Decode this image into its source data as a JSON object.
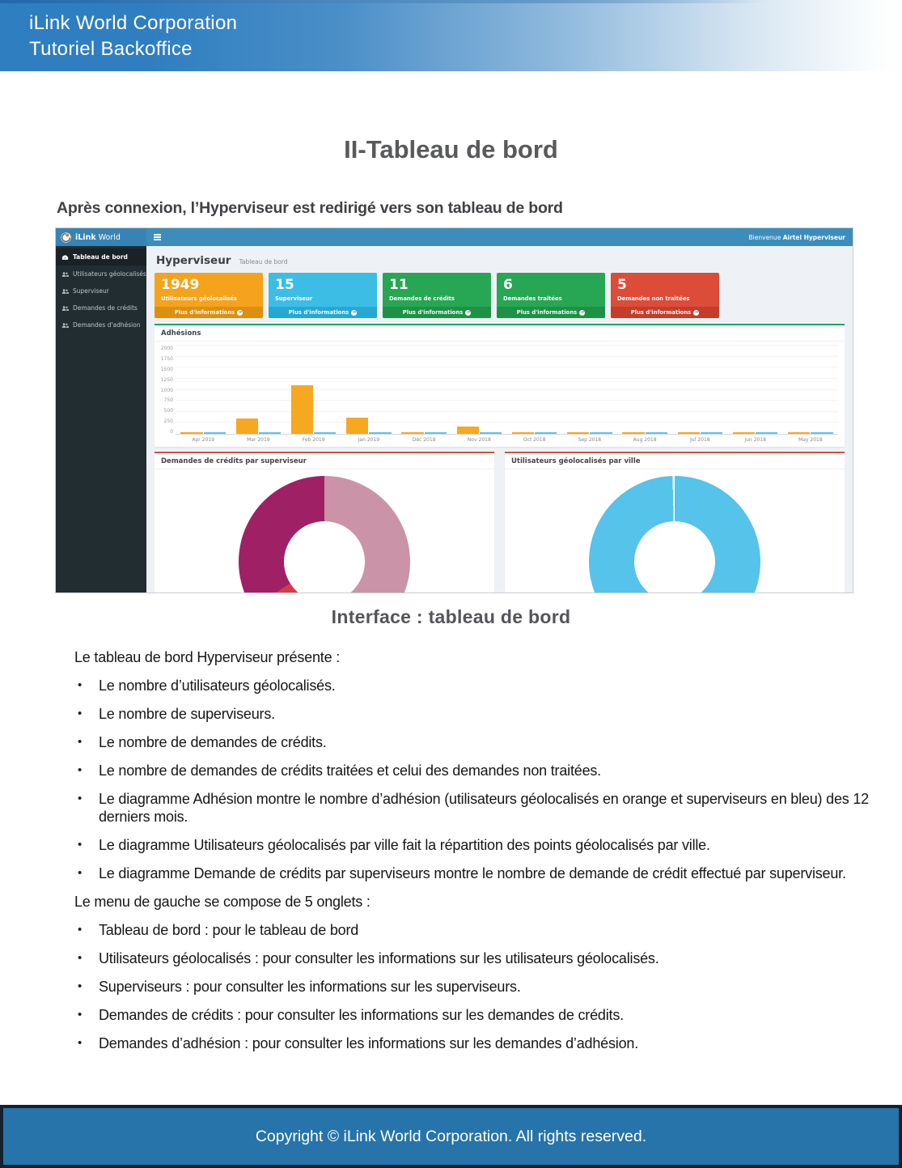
{
  "doc": {
    "header": {
      "line1": "iLink World Corporation",
      "line2": "Tutoriel Backoffice"
    },
    "title": "II-Tableau de bord",
    "subtitle": "Après connexion, l’Hyperviseur est redirigé vers son tableau de bord",
    "caption": "Interface : tableau de bord",
    "body": {
      "intro1": "Le tableau de bord Hyperviseur présente :",
      "bullets1": [
        "Le nombre d’utilisateurs géolocalisés.",
        "Le nombre de superviseurs.",
        "Le nombre de demandes de crédits.",
        "Le nombre de demandes de crédits traitées et celui des demandes non traitées.",
        "Le diagramme Adhésion montre le nombre d’adhésion (utilisateurs géolocalisés en orange et superviseurs en bleu) des 12 derniers mois.",
        "Le diagramme Utilisateurs géolocalisés par ville fait la répartition des points géolocalisés par ville.",
        "Le diagramme Demande de crédits par superviseurs montre le nombre de demande de crédit effectué par superviseur."
      ],
      "intro2": "Le menu de gauche se compose de 5 onglets :",
      "bullets2": [
        "Tableau de bord : pour le tableau de bord",
        "Utilisateurs géolocalisés : pour consulter les informations sur les utilisateurs géolocalisés.",
        "Superviseurs : pour consulter les informations sur les superviseurs.",
        "Demandes de crédits : pour consulter les informations sur les demandes de crédits.",
        "Demandes d’adhésion : pour consulter les informations sur les demandes d’adhésion."
      ]
    },
    "footer": "Copyright © iLink World Corporation. All rights reserved."
  },
  "dashboard": {
    "brand": {
      "bold": "iLink",
      "light": "World"
    },
    "welcome_prefix": "Bienvenue",
    "welcome_user": "Airtel Hyperviseur",
    "page_title": "Hyperviseur",
    "page_subtitle": "Tableau de bord",
    "sidebar": [
      {
        "label": "Tableau de bord",
        "icon": "dashboard-icon",
        "active": true
      },
      {
        "label": "Utilisateurs géolocalisés",
        "icon": "users-icon",
        "active": false
      },
      {
        "label": "Superviseur",
        "icon": "users-icon",
        "active": false
      },
      {
        "label": "Demandes de crédits",
        "icon": "users-icon",
        "active": false
      },
      {
        "label": "Demandes d'adhésion",
        "icon": "users-icon",
        "active": false
      }
    ],
    "cards": [
      {
        "value": "1949",
        "label": "Utilisateurs géolocalisés",
        "link": "Plus d'informations",
        "icon": "arrow-circle-icon",
        "color": "#f5a21c",
        "footer_color": "#dd8f10"
      },
      {
        "value": "15",
        "label": "Superviseur",
        "link": "Plus d'informations",
        "icon": "arrow-circle-icon",
        "color": "#3bbde6",
        "footer_color": "#25a8d3"
      },
      {
        "value": "11",
        "label": "Demandes de crédits",
        "link": "Plus d'informations",
        "icon": "arrow-circle-icon",
        "color": "#27a653",
        "footer_color": "#1e9146"
      },
      {
        "value": "6",
        "label": "Demandes traitées",
        "link": "Plus d'informations",
        "icon": "arrow-circle-icon",
        "color": "#27a653",
        "footer_color": "#1e9146"
      },
      {
        "value": "5",
        "label": "Demandes non traitées",
        "link": "Plus d'informations",
        "icon": "arrow-circle-icon",
        "color": "#dd4b39",
        "footer_color": "#c63c2b"
      }
    ],
    "accents": {
      "adhesions_box_top": "#00a65a",
      "donut_box_top": "#dd4b39"
    }
  },
  "chart_data": [
    {
      "type": "bar",
      "title": "Adhésions",
      "categories": [
        "Apr 2019",
        "Mar 2019",
        "Feb 2019",
        "Jan 2019",
        "Déc 2018",
        "Nov 2018",
        "Oct 2018",
        "Sep 2018",
        "Aug 2018",
        "Jul 2018",
        "Jun 2018",
        "May 2018"
      ],
      "series": [
        {
          "name": "Utilisateurs géolocalisés",
          "color": "#f6a821",
          "values": [
            15,
            340,
            1100,
            360,
            15,
            160,
            12,
            12,
            12,
            12,
            12,
            12
          ]
        },
        {
          "name": "Superviseurs",
          "color": "#5bc4e8",
          "values": [
            12,
            14,
            12,
            25,
            12,
            8,
            12,
            12,
            12,
            12,
            12,
            12
          ]
        }
      ],
      "ylim": [
        0,
        2000
      ],
      "yticks": [
        0,
        250,
        500,
        750,
        1000,
        1250,
        1500,
        1750,
        2000
      ],
      "grid": true,
      "legend": "none"
    },
    {
      "type": "pie",
      "title": "Demandes de crédits par superviseur",
      "donut": true,
      "slices": [
        {
          "pct": 43.5,
          "color": "#ca93a7"
        },
        {
          "pct": 22.5,
          "color": "#d63a49"
        },
        {
          "pct": 34.0,
          "color": "#a02066"
        }
      ]
    },
    {
      "type": "pie",
      "title": "Utilisateurs géolocalisés par ville",
      "donut": true,
      "slices": [
        {
          "pct": 99.6,
          "color": "#55c3ea"
        },
        {
          "pct": 0.4,
          "color": "#ffffff"
        }
      ]
    }
  ]
}
